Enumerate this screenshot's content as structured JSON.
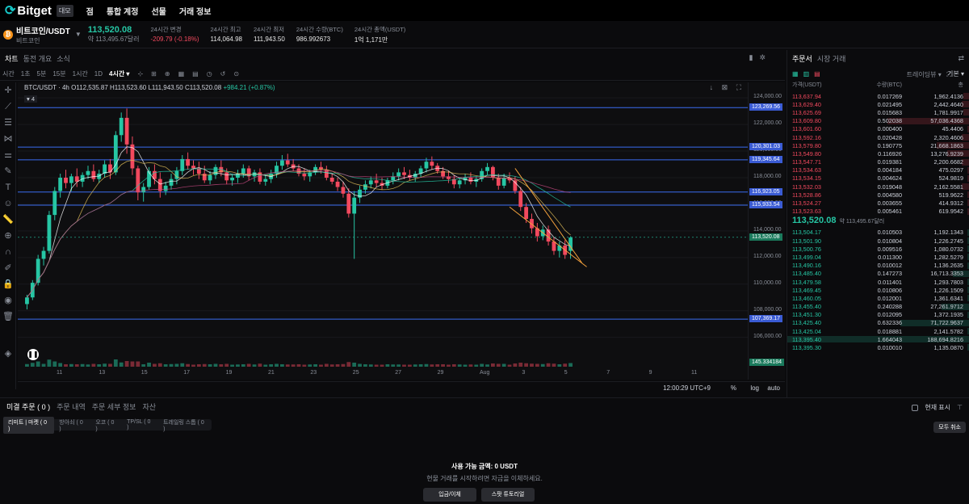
{
  "nav": {
    "logo": "Bitget",
    "lang_badge": "대모",
    "items": [
      "점",
      "통합 계정",
      "선물",
      "거래 정보"
    ]
  },
  "ticker": {
    "coin_icon": "₿",
    "pair": "비트코인/USDT",
    "subname": "비트코인",
    "last_price": "113,520.08",
    "last_price_usd": "약 113,495.67달러",
    "stats": [
      {
        "label": "24시간 변경",
        "value": "-209.79 (-0.18%)",
        "neg": true
      },
      {
        "label": "24시간 최고",
        "value": "114,064.98",
        "neg": false
      },
      {
        "label": "24시간 최저",
        "value": "111,943.50",
        "neg": false
      },
      {
        "label": "24시간 수량(BTC)",
        "value": "986.992673",
        "neg": false
      },
      {
        "label": "24시간 총액(USDT)",
        "value": "1억 1,171만",
        "neg": false
      }
    ]
  },
  "chart_tabs": [
    "차트",
    "동전 개요",
    "소식"
  ],
  "timeframes": [
    "시간",
    "1초",
    "5분",
    "15분",
    "1시간",
    "1D",
    "4시간"
  ],
  "chart_view_label": "트레이딩뷰",
  "chart_info": {
    "symbol": "BTC/USDT · 4h",
    "ohlc": "O112,535.87 H113,523.60 L111,943.50 C113,520.08",
    "change": "+984.21 (+0.87%)",
    "ma_label": "4"
  },
  "chart_data": {
    "type": "candlestick",
    "y_ticks": [
      "124,000.00",
      "122,000.00",
      "120,000.00",
      "118,000.00",
      "116,000.00",
      "114,000.00",
      "112,000.00",
      "110,000.00",
      "108,000.00",
      "106,000.00"
    ],
    "y_tick_values": [
      124000,
      122000,
      120000,
      118000,
      116000,
      114000,
      112000,
      110000,
      108000,
      106000
    ],
    "ylim": [
      104400,
      124800
    ],
    "x_ticks": [
      "11",
      "13",
      "15",
      "17",
      "19",
      "21",
      "23",
      "25",
      "27",
      "29",
      "Aug",
      "3",
      "5",
      "7",
      "9",
      "11"
    ],
    "horizontal_levels": [
      {
        "value": 123269.56,
        "label": "123,269.56"
      },
      {
        "value": 120301.03,
        "label": "120,301.03"
      },
      {
        "value": 119345.64,
        "label": "119,345.64"
      },
      {
        "value": 116923.05,
        "label": "116,923.05"
      },
      {
        "value": 115933.54,
        "label": "115,933.54"
      },
      {
        "value": 107369.17,
        "label": "107,369.17"
      }
    ],
    "current_price": {
      "value": 113520.08,
      "label": "113,520.08"
    },
    "volume_label": "145.334184",
    "candles": [
      [
        108500,
        109200,
        108100,
        109000
      ],
      [
        109000,
        110300,
        108800,
        110100
      ],
      [
        110100,
        112200,
        109900,
        111900
      ],
      [
        111900,
        112800,
        111400,
        112500
      ],
      [
        112500,
        115500,
        112300,
        115200
      ],
      [
        115200,
        117300,
        114800,
        117000
      ],
      [
        117000,
        118300,
        116500,
        118000
      ],
      [
        118000,
        118600,
        117200,
        117600
      ],
      [
        117600,
        118300,
        117000,
        118100
      ],
      [
        118100,
        118700,
        117300,
        117700
      ],
      [
        117700,
        118400,
        117300,
        118200
      ],
      [
        118200,
        118900,
        117900,
        118500
      ],
      [
        118500,
        119000,
        117700,
        117900
      ],
      [
        117900,
        118600,
        117600,
        118300
      ],
      [
        118300,
        119300,
        118000,
        119000
      ],
      [
        119000,
        119400,
        117900,
        118400
      ],
      [
        118400,
        121500,
        118200,
        121200
      ],
      [
        121200,
        122900,
        120700,
        122500
      ],
      [
        122500,
        123200,
        119800,
        120500
      ],
      [
        120500,
        121100,
        118200,
        118700
      ],
      [
        118700,
        118900,
        116300,
        116900
      ],
      [
        116900,
        117600,
        116200,
        117300
      ],
      [
        117300,
        118800,
        117100,
        118500
      ],
      [
        118500,
        119000,
        117500,
        117900
      ],
      [
        117900,
        118400,
        116500,
        117000
      ],
      [
        117000,
        117700,
        116700,
        117400
      ],
      [
        117400,
        118300,
        117100,
        117900
      ],
      [
        117900,
        118800,
        117500,
        118500
      ],
      [
        118500,
        119700,
        118200,
        119400
      ],
      [
        119400,
        119900,
        118600,
        118900
      ],
      [
        118900,
        119300,
        118200,
        118700
      ],
      [
        118700,
        119200,
        117900,
        118300
      ],
      [
        118300,
        118900,
        117600,
        117800
      ],
      [
        117800,
        118500,
        117500,
        118200
      ],
      [
        118200,
        119000,
        117900,
        118800
      ],
      [
        118800,
        119300,
        118100,
        118400
      ],
      [
        118400,
        118700,
        117500,
        117800
      ],
      [
        117800,
        118300,
        117400,
        118000
      ],
      [
        118000,
        118600,
        117600,
        118300
      ],
      [
        118300,
        119000,
        118000,
        118700
      ],
      [
        118700,
        118900,
        117800,
        118100
      ],
      [
        118100,
        118600,
        117700,
        118400
      ],
      [
        118400,
        118700,
        117500,
        117700
      ],
      [
        117700,
        118200,
        117400,
        117900
      ],
      [
        117900,
        118600,
        117600,
        118300
      ],
      [
        118300,
        119200,
        118000,
        118900
      ],
      [
        118900,
        119700,
        118600,
        119300
      ],
      [
        119300,
        119800,
        118800,
        119000
      ],
      [
        119000,
        119400,
        118500,
        118700
      ],
      [
        118700,
        119000,
        118100,
        118300
      ],
      [
        118300,
        118700,
        117800,
        118100
      ],
      [
        118100,
        118600,
        117700,
        118400
      ],
      [
        118400,
        119000,
        118200,
        118800
      ],
      [
        118800,
        119200,
        118300,
        118600
      ],
      [
        118600,
        118900,
        117800,
        118000
      ],
      [
        118000,
        118300,
        117500,
        117700
      ],
      [
        117700,
        118000,
        117000,
        117300
      ],
      [
        117300,
        117700,
        116500,
        116800
      ],
      [
        116800,
        117200,
        115000,
        115300
      ],
      [
        115300,
        117000,
        111900,
        116500
      ],
      [
        116500,
        117400,
        116100,
        117100
      ],
      [
        117100,
        117800,
        116800,
        117500
      ],
      [
        117500,
        118100,
        117200,
        117800
      ],
      [
        117800,
        118300,
        117300,
        117600
      ],
      [
        117600,
        118000,
        117100,
        117400
      ],
      [
        117400,
        118000,
        117200,
        117800
      ],
      [
        117800,
        118400,
        117500,
        118100
      ],
      [
        118100,
        118700,
        117800,
        118400
      ],
      [
        118400,
        118800,
        117900,
        118200
      ],
      [
        118200,
        118600,
        117800,
        118000
      ],
      [
        118000,
        118500,
        117700,
        118300
      ],
      [
        118300,
        118900,
        118000,
        118700
      ],
      [
        118700,
        119500,
        118400,
        119200
      ],
      [
        119200,
        119600,
        118600,
        118900
      ],
      [
        118900,
        119100,
        118300,
        118500
      ],
      [
        118500,
        118800,
        117900,
        118100
      ],
      [
        118100,
        118500,
        117600,
        117900
      ],
      [
        117900,
        118200,
        117200,
        117500
      ],
      [
        117500,
        118000,
        117200,
        117800
      ],
      [
        117800,
        118300,
        117500,
        118000
      ],
      [
        118000,
        118400,
        117500,
        117700
      ],
      [
        117700,
        118100,
        117300,
        117900
      ],
      [
        117900,
        118700,
        117700,
        118500
      ],
      [
        118500,
        119100,
        118200,
        118800
      ],
      [
        118800,
        118900,
        117800,
        118000
      ],
      [
        118000,
        118300,
        117100,
        117400
      ],
      [
        117400,
        118300,
        117200,
        118000
      ],
      [
        118000,
        118400,
        117600,
        117800
      ],
      [
        117800,
        118100,
        116800,
        117000
      ],
      [
        117000,
        117300,
        115500,
        115800
      ],
      [
        115800,
        116100,
        114600,
        114900
      ],
      [
        114900,
        115300,
        113800,
        114200
      ],
      [
        114200,
        114600,
        113200,
        113600
      ],
      [
        113600,
        114400,
        113300,
        114100
      ],
      [
        114100,
        114400,
        112900,
        113200
      ],
      [
        113200,
        113500,
        112200,
        112500
      ],
      [
        112500,
        113200,
        112000,
        112900
      ],
      [
        112900,
        113300,
        111900,
        112200
      ],
      [
        112500,
        113600,
        111900,
        113500
      ]
    ]
  },
  "time_bar": {
    "time": "12:00:29 UTC+9",
    "opts": [
      "%",
      "log",
      "auto"
    ]
  },
  "orderbook": {
    "tabs": [
      "주문서",
      "시장 거래"
    ],
    "precision": "기본",
    "headers": [
      "가격(USDT)",
      "수량(BTC)",
      "총"
    ],
    "asks": [
      [
        "113,637.94",
        "0.017269",
        "1,962.4136"
      ],
      [
        "113,629.40",
        "0.021495",
        "2,442.4640"
      ],
      [
        "113,625.69",
        "0.015683",
        "1,781.9917"
      ],
      [
        "113,609.80",
        "0.502038",
        "57,036.4368"
      ],
      [
        "113,601.60",
        "0.000400",
        "45.4406"
      ],
      [
        "113,592.16",
        "0.020428",
        "2,320.4606"
      ],
      [
        "113,579.80",
        "0.190775",
        "21,668.1863"
      ],
      [
        "113,549.80",
        "0.116926",
        "13,276.9239"
      ],
      [
        "113,547.71",
        "0.019381",
        "2,200.6682"
      ],
      [
        "113,534.63",
        "0.004184",
        "475.0297"
      ],
      [
        "113,534.15",
        "0.004624",
        "524.9819"
      ],
      [
        "113,532.03",
        "0.019048",
        "2,162.5581"
      ],
      [
        "113,528.86",
        "0.004580",
        "519.9622"
      ],
      [
        "113,524.27",
        "0.003655",
        "414.9312"
      ],
      [
        "113,523.63",
        "0.005461",
        "619.9542"
      ]
    ],
    "ask_depth": [
      0.03,
      0.04,
      0.03,
      0.45,
      0.01,
      0.04,
      0.18,
      0.12,
      0.04,
      0.01,
      0.01,
      0.04,
      0.01,
      0.01,
      0.01
    ],
    "mid_price": "113,520.08",
    "mid_usd": "약 113,495.67달러",
    "bids": [
      [
        "113,504.17",
        "0.010503",
        "1,192.1343"
      ],
      [
        "113,501.90",
        "0.010804",
        "1,226.2745"
      ],
      [
        "113,500.76",
        "0.009516",
        "1,080.0732"
      ],
      [
        "113,499.04",
        "0.011300",
        "1,282.5279"
      ],
      [
        "113,490.16",
        "0.010012",
        "1,136.2635"
      ],
      [
        "113,485.40",
        "0.147273",
        "16,713.3353"
      ],
      [
        "113,479.58",
        "0.011401",
        "1,293.7803"
      ],
      [
        "113,469.45",
        "0.010806",
        "1,226.1509"
      ],
      [
        "113,460.05",
        "0.012001",
        "1,361.6341"
      ],
      [
        "113,455.40",
        "0.240288",
        "27,261.9712"
      ],
      [
        "113,451.30",
        "0.012095",
        "1,372.1935"
      ],
      [
        "113,425.40",
        "0.632336",
        "71,722.9637"
      ],
      [
        "113,425.04",
        "0.018881",
        "2,141.5782"
      ],
      [
        "113,395.40",
        "1.664043",
        "188,694.8216"
      ],
      [
        "113,395.30",
        "0.010010",
        "1,135.0870"
      ]
    ],
    "bid_depth": [
      0.01,
      0.01,
      0.01,
      0.01,
      0.01,
      0.09,
      0.01,
      0.01,
      0.01,
      0.15,
      0.01,
      0.38,
      0.01,
      1.0,
      0.01
    ]
  },
  "bottom": {
    "tabs": [
      "미결 주문 ( 0 )",
      "주문 내역",
      "주문 세부 정보",
      "자산"
    ],
    "sub_tabs": [
      "리미트 | 마켓 ( 0 )",
      "방아쇠 ( 0 )",
      "오코 ( 0 )",
      "TP/SL ( 0 )",
      "트레일링 스톱 ( 0 )"
    ],
    "show_current": "현재 표시",
    "cancel_all": "모두 취소",
    "available": "사용 가능 금액: 0 USDT",
    "hint": "현물 거래를 시작하려면 자금을 이체하세요.",
    "deposit_button": "입금/이체",
    "tutorial_button": "스팟 튜토리얼"
  }
}
